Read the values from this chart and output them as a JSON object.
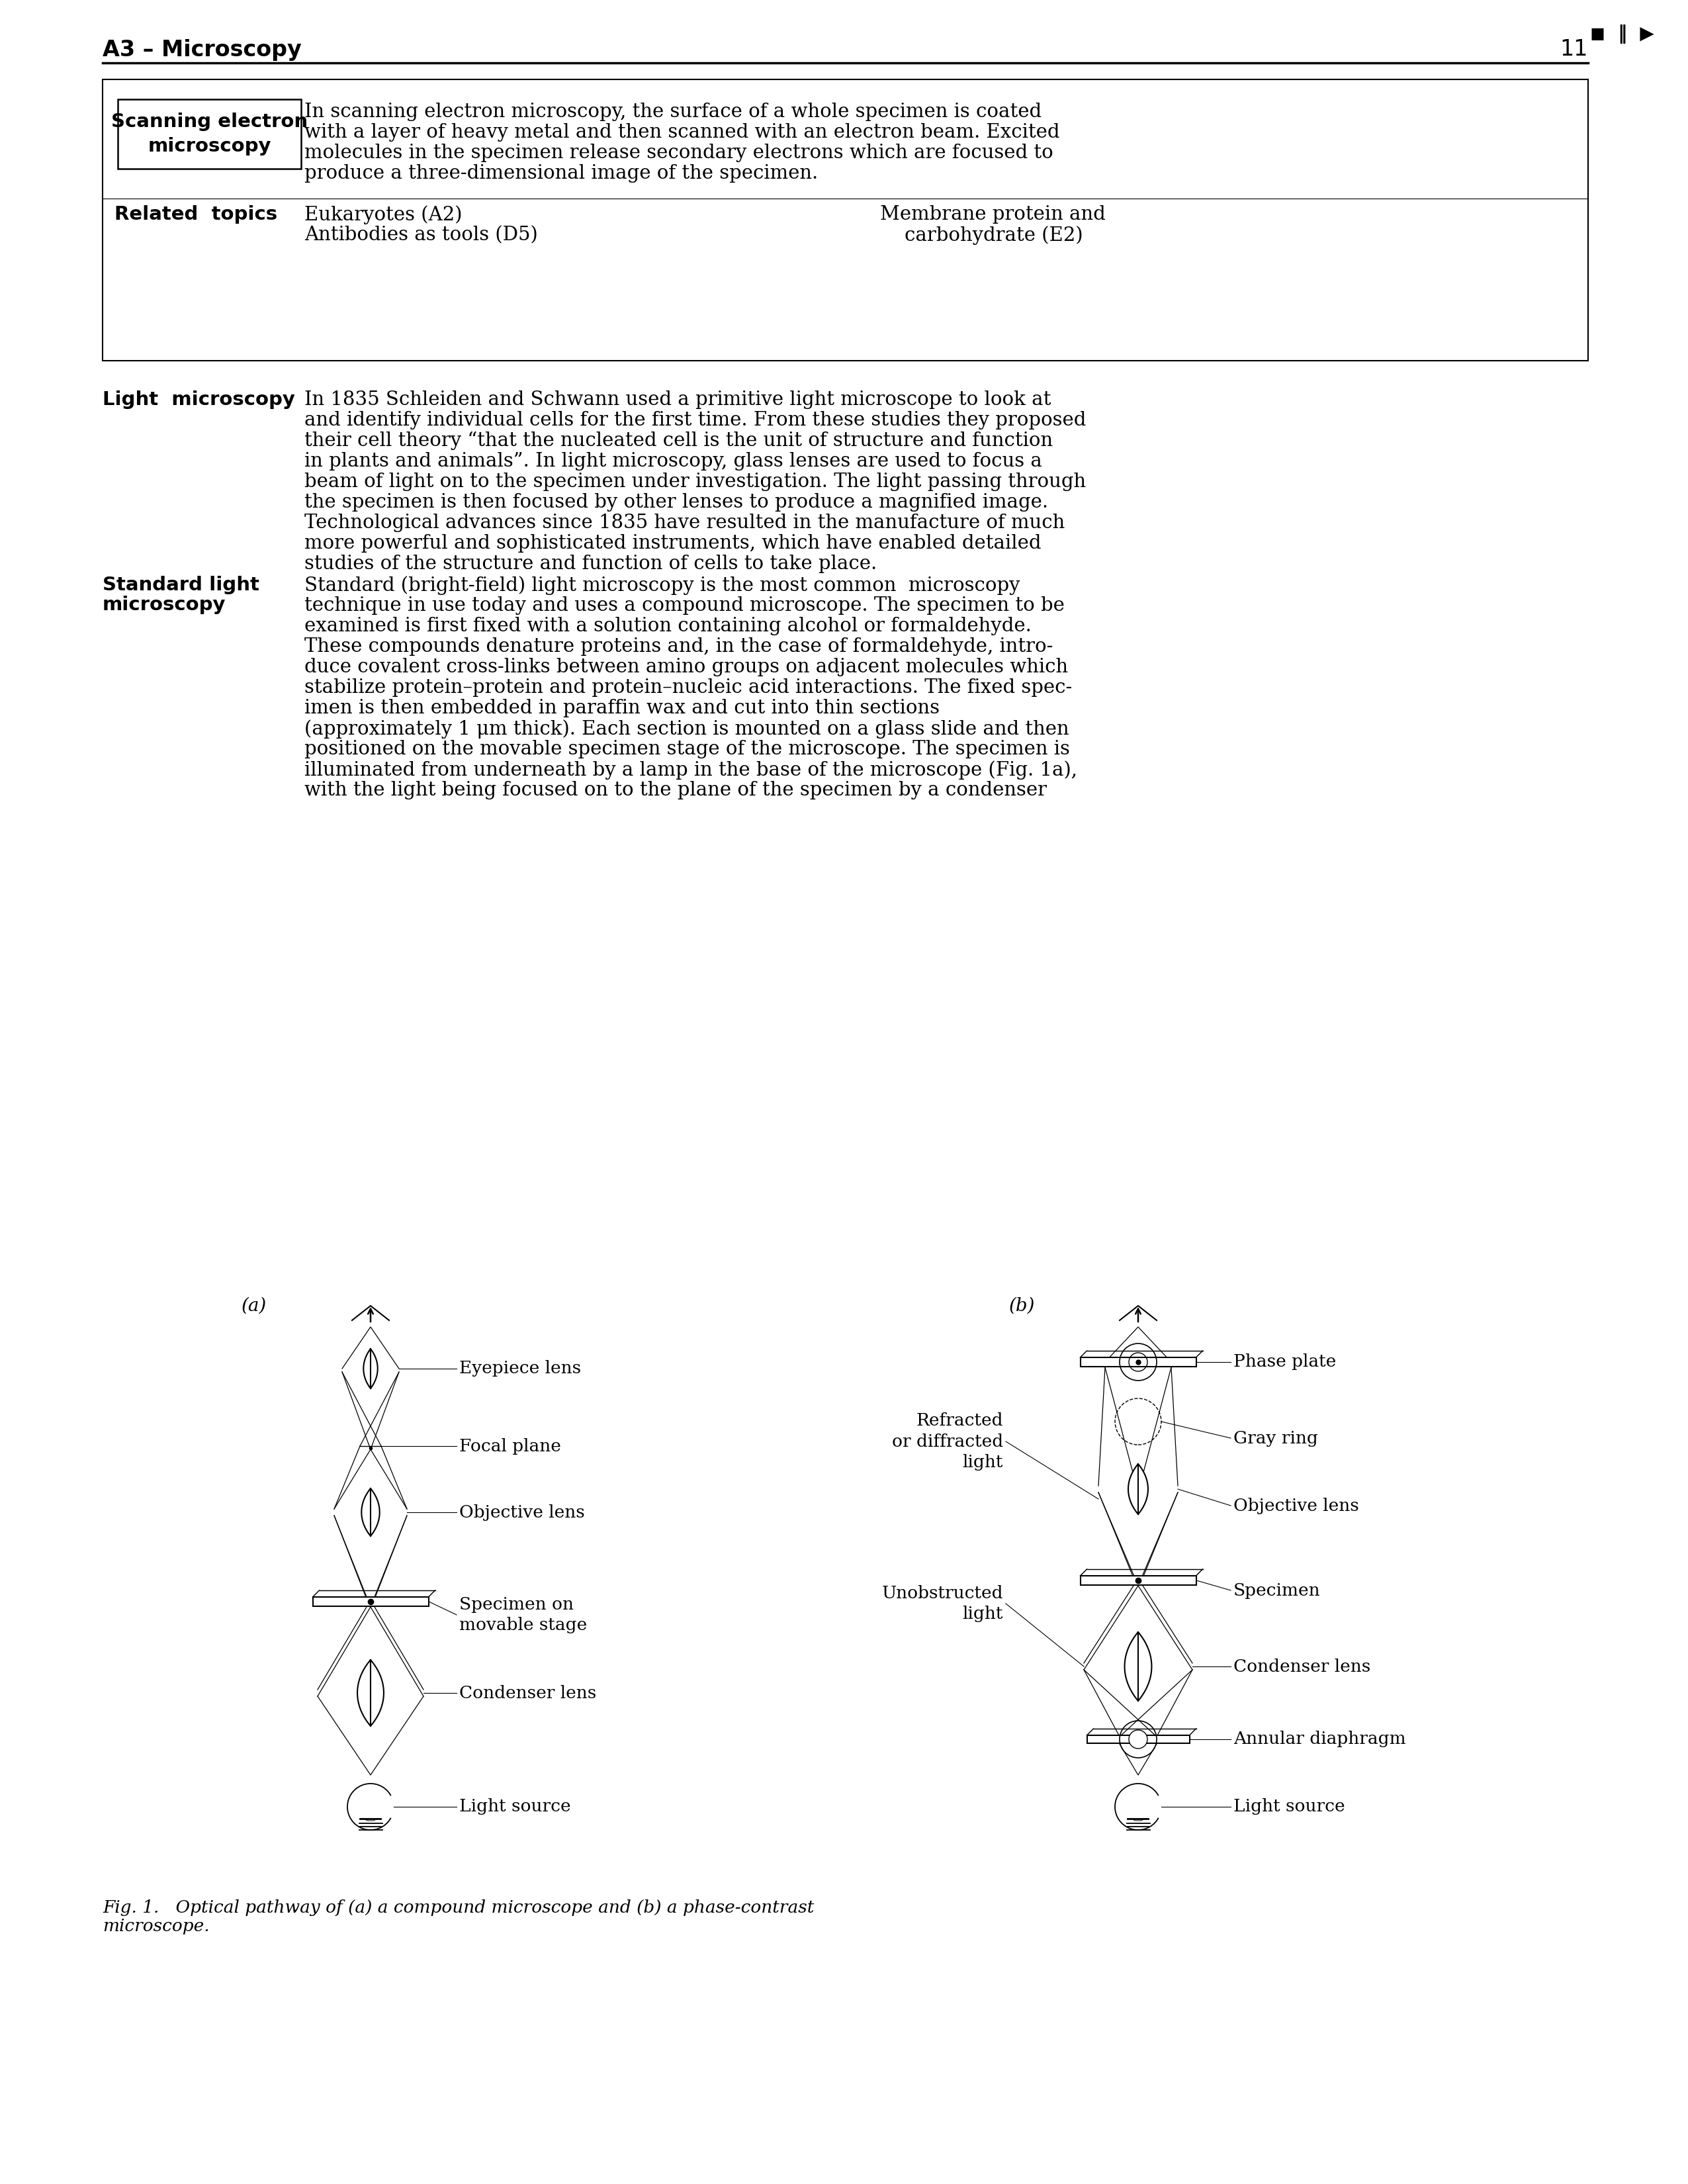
{
  "page_bg": "#ffffff",
  "page_title": "A3 – Microscopy",
  "page_number": "11",
  "box_label": "Scanning electron\nmicroscopy",
  "box_text_lines": [
    "In scanning electron microscopy, the surface of a whole specimen is coated",
    "with a layer of heavy metal and then scanned with an electron beam. Excited",
    "molecules in the specimen release secondary electrons which are focused to",
    "produce a three-dimensional image of the specimen."
  ],
  "related_label": "Related  topics",
  "related_left": [
    "Eukaryotes (A2)",
    "Antibodies as tools (D5)"
  ],
  "related_right": [
    "Membrane protein and",
    "    carbohydrate (E2)"
  ],
  "sec1_label": "Light  microscopy",
  "sec1_lines": [
    "In 1835 Schleiden and Schwann used a primitive light microscope to look at",
    "and identify individual cells for the first time. From these studies they proposed",
    "their cell theory “that the nucleated cell is the unit of structure and function",
    "in plants and animals”. In light microscopy, glass lenses are used to focus a",
    "beam of light on to the specimen under investigation. The light passing through",
    "the specimen is then focused by other lenses to produce a magnified image.",
    "Technological advances since 1835 have resulted in the manufacture of much",
    "more powerful and sophisticated instruments, which have enabled detailed",
    "studies of the structure and function of cells to take place."
  ],
  "sec2_label": [
    "Standard light",
    "microscopy"
  ],
  "sec2_lines": [
    "Standard (bright-field) light microscopy is the most common  microscopy",
    "technique in use today and uses a compound microscope. The specimen to be",
    "examined is first fixed with a solution containing alcohol or formaldehyde.",
    "These compounds denature proteins and, in the case of formaldehyde, intro-",
    "duce covalent cross-links between amino groups on adjacent molecules which",
    "stabilize protein–protein and protein–nucleic acid interactions. The fixed spec-",
    "imen is then embedded in paraffin wax and cut into thin sections",
    "(approximately 1 μm thick). Each section is mounted on a glass slide and then",
    "positioned on the movable specimen stage of the microscope. The specimen is",
    "illuminated from underneath by a lamp in the base of the microscope (Fig. 1a),",
    "with the light being focused on to the plane of the specimen by a condenser"
  ],
  "fig_label_a": "(a)",
  "fig_label_b": "(b)",
  "label_a": {
    "eyepiece": "Eyepiece lens",
    "focal": "Focal plane",
    "objective": "Objective lens",
    "specimen": "Specimen on\nmovable stage",
    "condenser": "Condenser lens",
    "light": "Light source"
  },
  "label_b": {
    "phase": "Phase plate",
    "gray": "Gray ring",
    "objective": "Objective lens",
    "specimen": "Specimen",
    "condenser": "Condenser lens",
    "annular": "Annular diaphragm",
    "light": "Light source",
    "refracted": "Refracted\nor diffracted\nlight",
    "unobstructed": "Unobstructed\nlight"
  },
  "fig_caption": [
    "Fig. 1.   Optical pathway of (a) a compound microscope and (b) a phase-contrast",
    "microscope."
  ]
}
